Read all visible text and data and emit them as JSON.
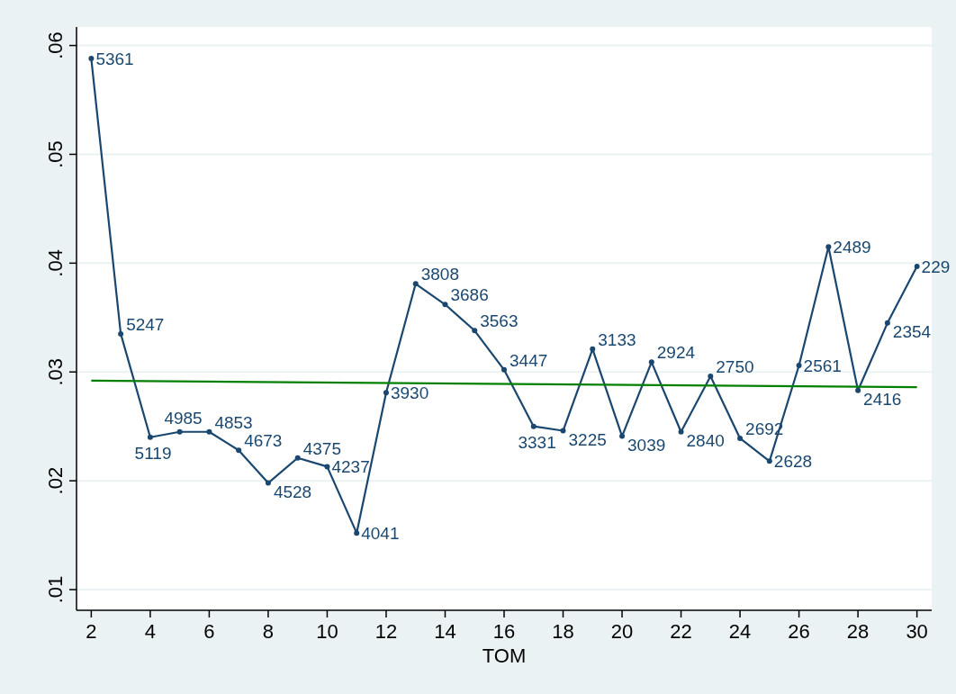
{
  "chart_data": {
    "type": "line",
    "xlabel": "TOM",
    "xlim": [
      1.5,
      30.5
    ],
    "xticks": [
      2,
      4,
      6,
      8,
      10,
      12,
      14,
      16,
      18,
      20,
      22,
      24,
      26,
      28,
      30
    ],
    "ylim": [
      0.0081,
      0.0617
    ],
    "yticks": [
      {
        "value": 0.01,
        "label": ".01"
      },
      {
        "value": 0.02,
        "label": ".02"
      },
      {
        "value": 0.03,
        "label": ".03"
      },
      {
        "value": 0.04,
        "label": ".04"
      },
      {
        "value": 0.05,
        "label": ".05"
      },
      {
        "value": 0.06,
        "label": ".06"
      }
    ],
    "grid": "y",
    "marker": "circle",
    "line_style": "solid",
    "x": [
      2,
      3,
      4,
      5,
      6,
      7,
      8,
      9,
      10,
      11,
      12,
      13,
      14,
      15,
      16,
      17,
      18,
      19,
      20,
      21,
      22,
      23,
      24,
      25,
      26,
      27,
      28,
      29,
      30
    ],
    "series": [
      {
        "color": "#1a476f",
        "values": [
          0.0588,
          0.0335,
          0.024,
          0.0245,
          0.0245,
          0.0228,
          0.0198,
          0.0221,
          0.0213,
          0.0152,
          0.0281,
          0.0381,
          0.0362,
          0.0338,
          0.0302,
          0.025,
          0.0246,
          0.0321,
          0.0241,
          0.0309,
          0.0245,
          0.0296,
          0.0239,
          0.0218,
          0.0306,
          0.0415,
          0.0283,
          0.0345,
          0.0397
        ]
      },
      {
        "color": "#008000",
        "marker": "none",
        "x": [
          2,
          30
        ],
        "values": [
          0.0292,
          0.0286
        ]
      }
    ],
    "annotations": [
      {
        "text": "5361",
        "x": 2,
        "y": 0.0588
      },
      {
        "text": "5247",
        "x": 3,
        "y": 0.0335
      },
      {
        "text": "5119",
        "x": 4,
        "y": 0.024
      },
      {
        "text": "4985",
        "x": 5,
        "y": 0.0245
      },
      {
        "text": "4853",
        "x": 6,
        "y": 0.0245
      },
      {
        "text": "4673",
        "x": 7,
        "y": 0.0228
      },
      {
        "text": "4528",
        "x": 8,
        "y": 0.0198
      },
      {
        "text": "4375",
        "x": 9,
        "y": 0.0221
      },
      {
        "text": "4237",
        "x": 10,
        "y": 0.0213
      },
      {
        "text": "4041",
        "x": 11,
        "y": 0.0152
      },
      {
        "text": "3930",
        "x": 12,
        "y": 0.0281
      },
      {
        "text": "3808",
        "x": 13,
        "y": 0.0381
      },
      {
        "text": "3686",
        "x": 14,
        "y": 0.0362
      },
      {
        "text": "3563",
        "x": 15,
        "y": 0.0338
      },
      {
        "text": "3447",
        "x": 16,
        "y": 0.0302
      },
      {
        "text": "3331",
        "x": 17,
        "y": 0.025
      },
      {
        "text": "3225",
        "x": 18,
        "y": 0.0246
      },
      {
        "text": "3133",
        "x": 19,
        "y": 0.0321
      },
      {
        "text": "3039",
        "x": 20,
        "y": 0.0241
      },
      {
        "text": "2924",
        "x": 21,
        "y": 0.0309
      },
      {
        "text": "2840",
        "x": 22,
        "y": 0.0245
      },
      {
        "text": "2750",
        "x": 23,
        "y": 0.0296
      },
      {
        "text": "2692",
        "x": 24,
        "y": 0.0239
      },
      {
        "text": "2628",
        "x": 25,
        "y": 0.0218
      },
      {
        "text": "2561",
        "x": 26,
        "y": 0.0306
      },
      {
        "text": "2489",
        "x": 27,
        "y": 0.0415
      },
      {
        "text": "2416",
        "x": 28,
        "y": 0.0283
      },
      {
        "text": "2354",
        "x": 29,
        "y": 0.0345
      },
      {
        "text": "229",
        "x": 30,
        "y": 0.0397
      }
    ]
  }
}
